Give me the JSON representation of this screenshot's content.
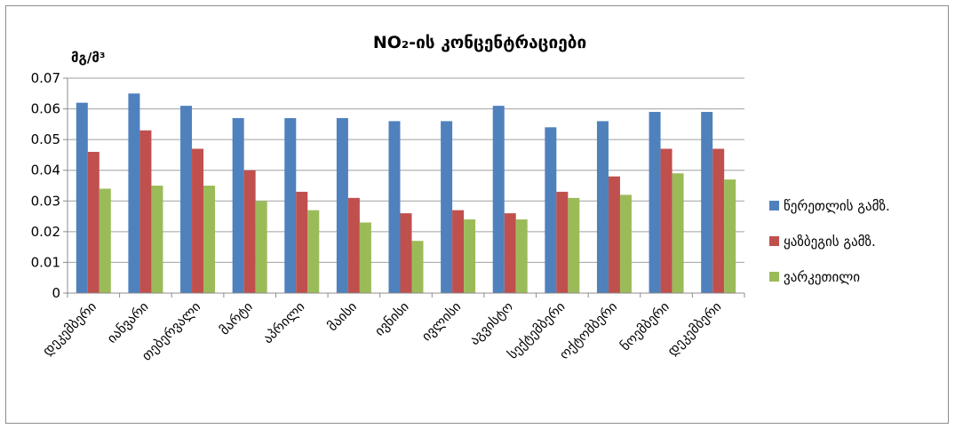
{
  "chart_data": {
    "type": "bar",
    "title": "NO₂-ის კონცენტრაციები",
    "ylabel": "მგ/მ³",
    "xlabel": "",
    "ylim": [
      0,
      0.07
    ],
    "yticks": [
      "0",
      "0.01",
      "0.02",
      "0.03",
      "0.04",
      "0.05",
      "0.06",
      "0.07"
    ],
    "grid": "horizontal-major",
    "legend_position": "right",
    "categories": [
      "დეკემბერი",
      "იანვარი",
      "თებერვალი",
      "მარტი",
      "აპრილი",
      "მაისი",
      "ივნისი",
      "ივლისი",
      "აგვისტო",
      "სექტემბერი",
      "ოქტომბერი",
      "ნოემბერი",
      "დეკემბერი"
    ],
    "series": [
      {
        "name": "წერეთლის გამზ.",
        "color": "#4f81bd",
        "values": [
          0.062,
          0.065,
          0.061,
          0.057,
          0.057,
          0.057,
          0.056,
          0.056,
          0.061,
          0.054,
          0.056,
          0.059,
          0.059
        ]
      },
      {
        "name": "ყაზბეგის გამზ.",
        "color": "#c0504d",
        "values": [
          0.046,
          0.053,
          0.047,
          0.04,
          0.033,
          0.031,
          0.026,
          0.027,
          0.026,
          0.033,
          0.038,
          0.047,
          0.047
        ]
      },
      {
        "name": "ვარკეთილი",
        "color": "#9bbb59",
        "values": [
          0.034,
          0.035,
          0.035,
          0.03,
          0.027,
          0.023,
          0.017,
          0.024,
          0.024,
          0.031,
          0.032,
          0.039,
          0.037
        ]
      }
    ]
  }
}
